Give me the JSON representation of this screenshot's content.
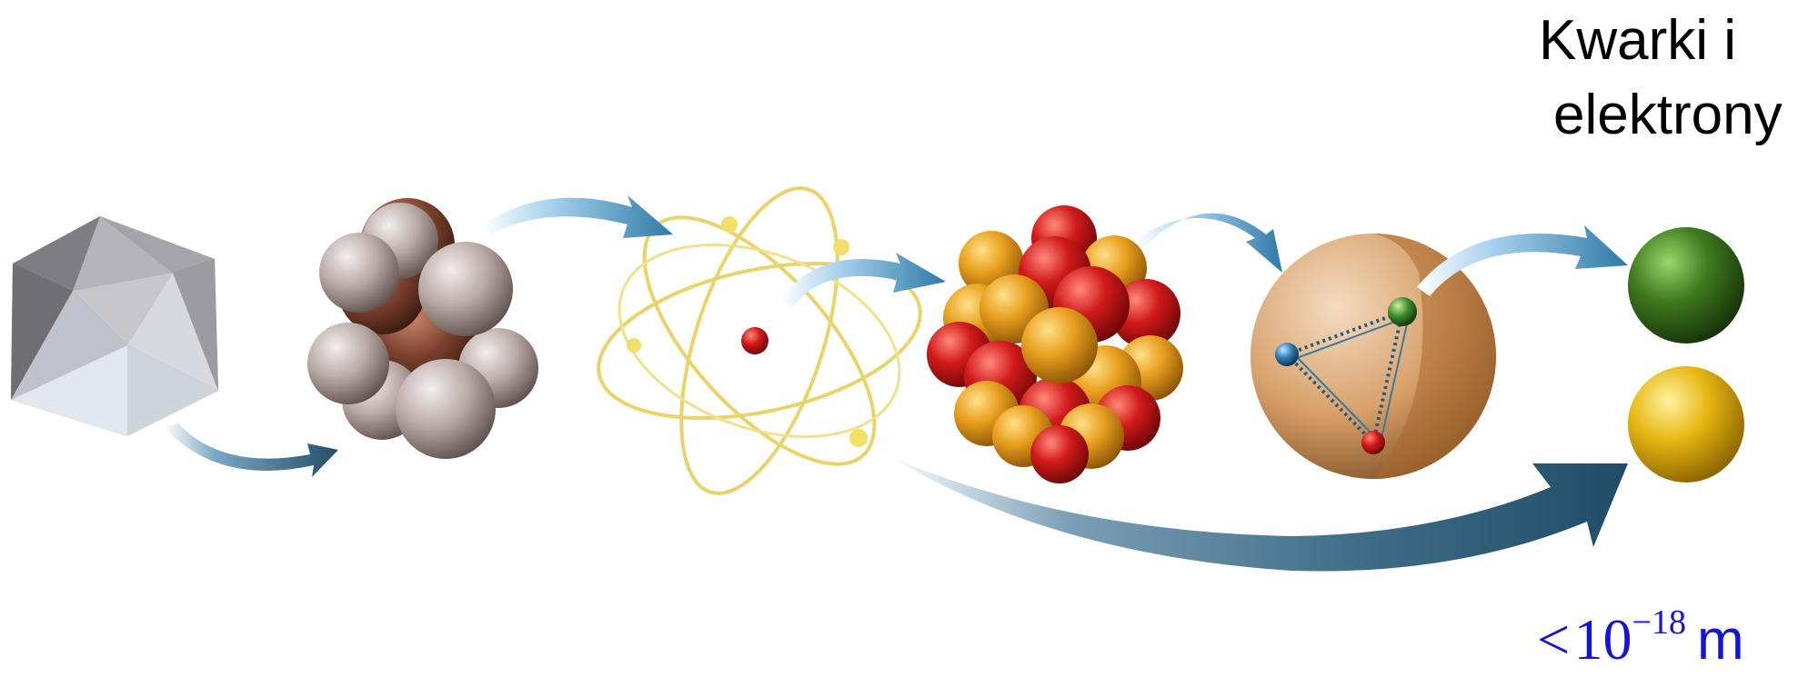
{
  "title": {
    "line1": "Kwarki i",
    "line2": "elektrony"
  },
  "scale": {
    "comparator": "<",
    "base": "10",
    "exponent": "−18",
    "unit": "m"
  },
  "stages": [
    {
      "name": "crystal",
      "color": "#a9a9ad"
    },
    {
      "name": "molecule",
      "color": "#b9aaa5"
    },
    {
      "name": "atom",
      "orbit_color": "#e8d46a",
      "nucleus_color": "#d11a1a"
    },
    {
      "name": "nucleus",
      "proton_color": "#d11a1a",
      "neutron_color": "#e8a01e"
    },
    {
      "name": "nucleon",
      "shell_color": "#d7a06a",
      "quark_colors": [
        "#3a8a2a",
        "#2a7ab0",
        "#c0321e"
      ]
    },
    {
      "name": "quark",
      "color": "#3f7a1e"
    },
    {
      "name": "electron",
      "color": "#e6b812"
    }
  ],
  "colors": {
    "arrow_light": "#a9d2ee",
    "arrow_dark": "#2c5c78",
    "scale_text": "#1414d8"
  }
}
